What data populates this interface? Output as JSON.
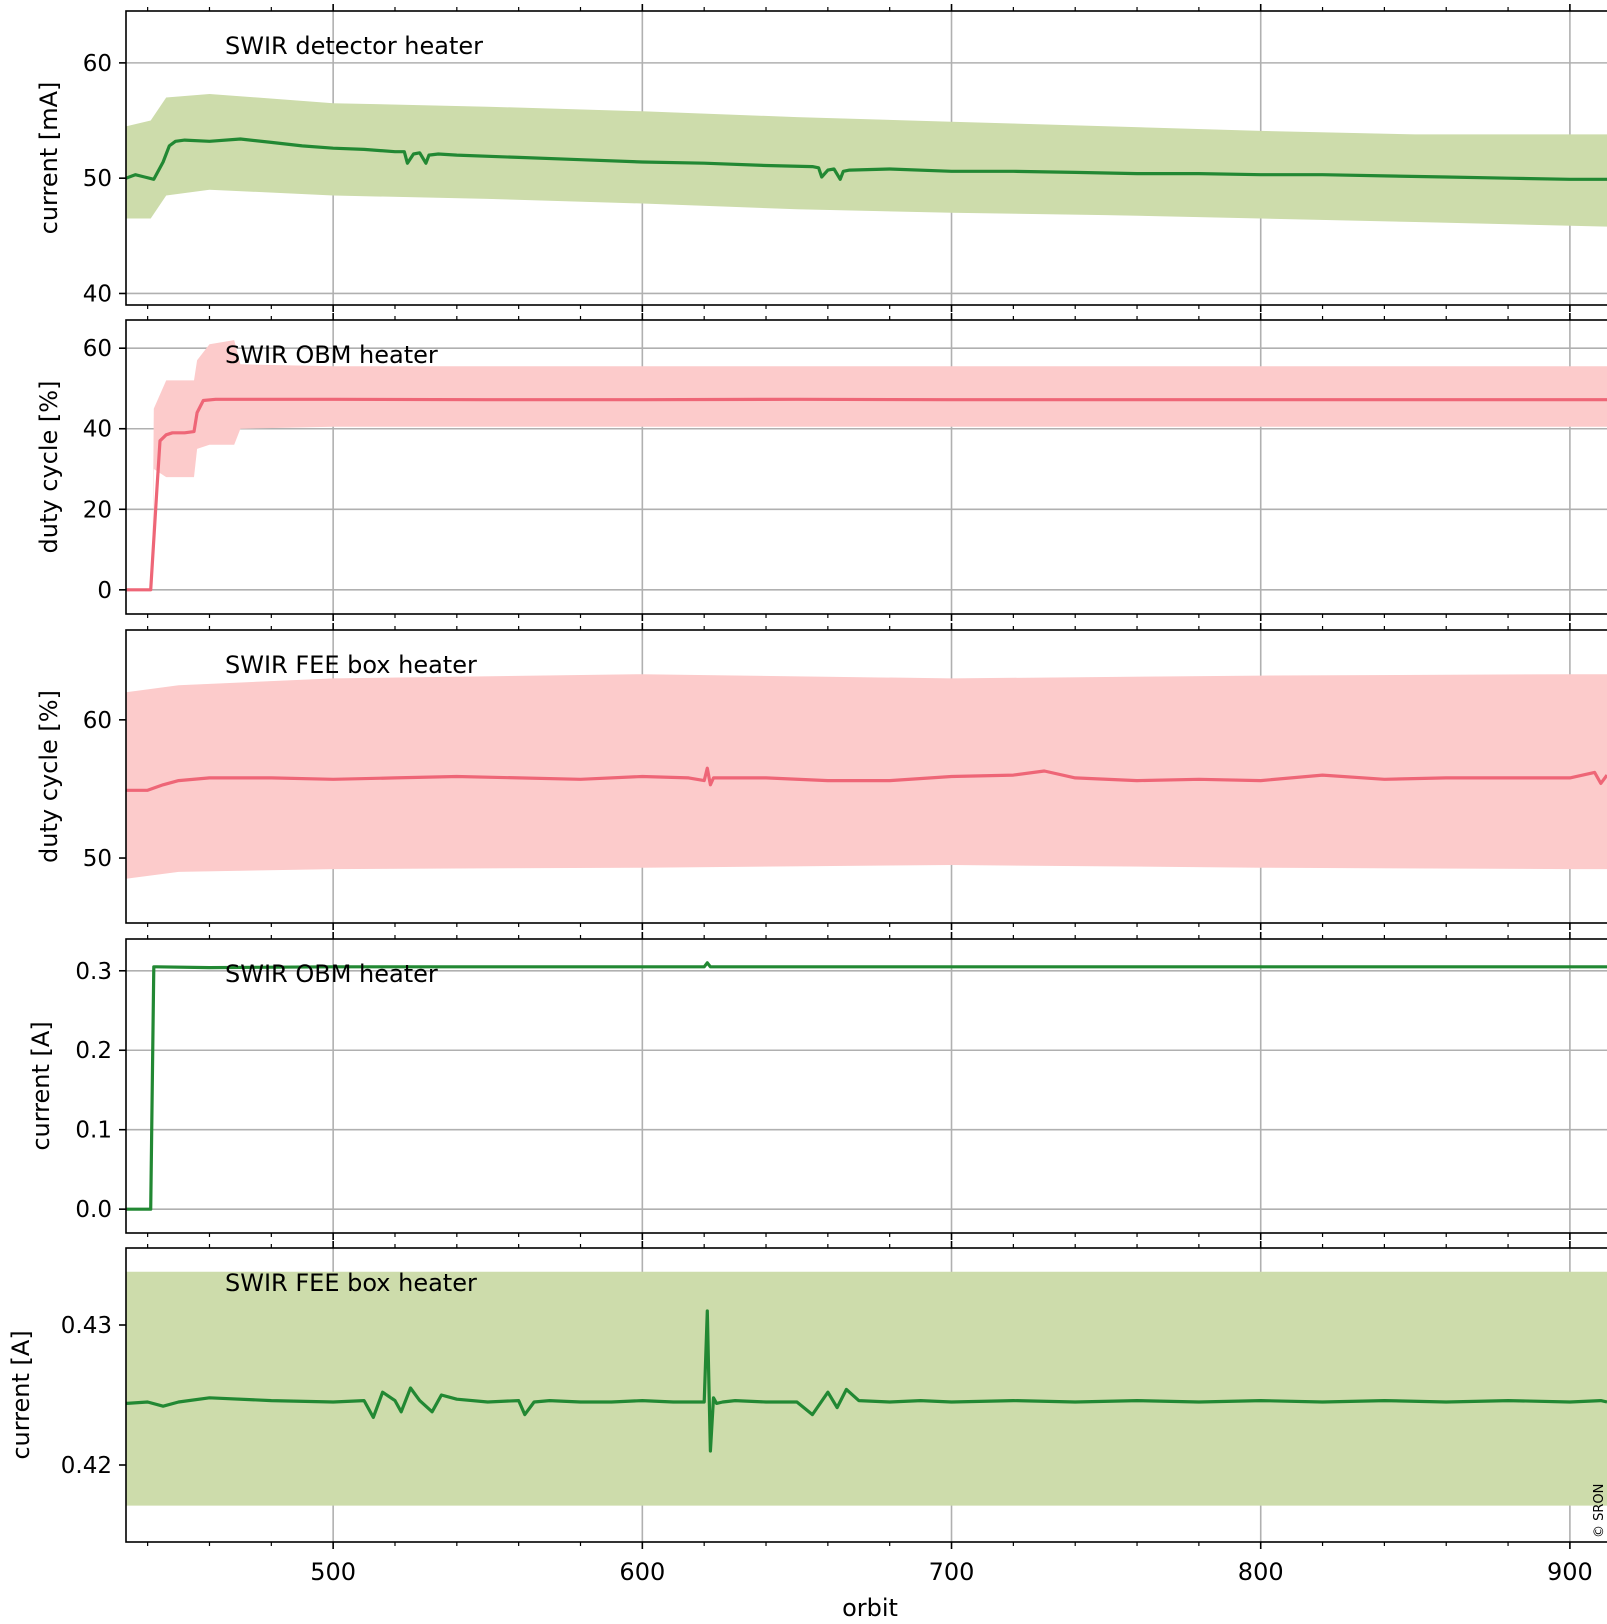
{
  "figure": {
    "xlabel": "orbit",
    "x_ticks": [
      500,
      600,
      700,
      800,
      900
    ],
    "x_range": [
      433,
      912
    ],
    "watermark": "© SRON"
  },
  "colors": {
    "band_green": "#cddcab",
    "line_green": "#228833",
    "band_red": "#fccbcb",
    "line_red": "#ee6677",
    "grid": "#b0b0b0"
  },
  "chart_data": [
    {
      "type": "area",
      "label": "SWIR detector heater",
      "ylabel": "current [mA]",
      "ylim": [
        39,
        64.5
      ],
      "yticks": [
        40,
        50,
        60
      ],
      "grid": true,
      "series": [
        {
          "role": "band",
          "x": [
            433,
            441,
            446,
            460,
            500,
            550,
            600,
            650,
            700,
            750,
            800,
            850,
            912
          ],
          "upper": [
            54.5,
            55,
            57,
            57.3,
            56.5,
            56.2,
            55.8,
            55.3,
            54.9,
            54.5,
            54.1,
            53.8,
            53.8
          ],
          "lower": [
            46.5,
            46.5,
            48.5,
            49,
            48.5,
            48.2,
            47.8,
            47.3,
            47,
            46.8,
            46.5,
            46.2,
            45.8
          ]
        },
        {
          "role": "mean",
          "x": [
            433,
            436,
            439,
            442,
            445,
            447,
            449,
            452,
            460,
            470,
            480,
            490,
            500,
            510,
            520,
            523,
            524,
            526,
            528,
            530,
            531,
            534,
            540,
            560,
            580,
            600,
            620,
            640,
            655,
            657,
            658,
            660,
            662,
            664,
            665,
            667,
            680,
            700,
            720,
            740,
            760,
            780,
            800,
            820,
            840,
            860,
            880,
            900,
            912
          ],
          "values": [
            50.0,
            50.3,
            50.1,
            49.9,
            51.4,
            52.8,
            53.2,
            53.3,
            53.2,
            53.4,
            53.1,
            52.8,
            52.6,
            52.5,
            52.3,
            52.3,
            51.3,
            52.1,
            52.2,
            51.3,
            52.0,
            52.1,
            52.0,
            51.8,
            51.6,
            51.4,
            51.3,
            51.1,
            51.0,
            50.9,
            50.1,
            50.7,
            50.8,
            49.9,
            50.6,
            50.7,
            50.8,
            50.6,
            50.6,
            50.5,
            50.4,
            50.4,
            50.3,
            50.3,
            50.2,
            50.1,
            50.0,
            49.9,
            49.9
          ]
        }
      ]
    },
    {
      "type": "area",
      "label": "SWIR OBM heater",
      "ylabel": "duty cycle [%]",
      "ylim": [
        -6,
        67
      ],
      "yticks": [
        0,
        20,
        40,
        60
      ],
      "grid": true,
      "series": [
        {
          "role": "band",
          "x": [
            441.5,
            442,
            446,
            455,
            456,
            460,
            468,
            470,
            500,
            600,
            700,
            800,
            912
          ],
          "upper": [
            0,
            45,
            52,
            52,
            57,
            61,
            62,
            56,
            55.5,
            55.5,
            55.5,
            55.5,
            55.5
          ],
          "lower": [
            0,
            30,
            28,
            28,
            35,
            36,
            36,
            40,
            40.5,
            40.5,
            40.5,
            40.5,
            40.5
          ]
        },
        {
          "role": "mean",
          "x": [
            433,
            441,
            443,
            444,
            446,
            448,
            452,
            455,
            456,
            458,
            462,
            500,
            550,
            600,
            650,
            700,
            750,
            800,
            850,
            912
          ],
          "values": [
            0,
            0,
            25,
            37,
            38.5,
            39,
            39,
            39.3,
            44,
            47,
            47.3,
            47.3,
            47.2,
            47.2,
            47.3,
            47.2,
            47.2,
            47.2,
            47.2,
            47.2
          ]
        }
      ]
    },
    {
      "type": "area",
      "label": "SWIR FEE box heater",
      "ylabel": "duty cycle [%]",
      "ylim": [
        45.3,
        66.5
      ],
      "yticks": [
        50,
        60
      ],
      "grid": true,
      "series": [
        {
          "role": "band",
          "x": [
            433,
            450,
            500,
            600,
            700,
            800,
            900,
            912
          ],
          "upper": [
            62.0,
            62.5,
            63.0,
            63.3,
            63.0,
            63.2,
            63.3,
            63.3
          ],
          "lower": [
            48.5,
            49.0,
            49.2,
            49.3,
            49.5,
            49.3,
            49.2,
            49.2
          ]
        },
        {
          "role": "mean",
          "x": [
            433,
            440,
            445,
            450,
            460,
            480,
            500,
            520,
            540,
            560,
            580,
            600,
            615,
            620,
            621,
            622,
            623,
            640,
            660,
            680,
            700,
            720,
            730,
            740,
            760,
            780,
            800,
            820,
            840,
            860,
            880,
            900,
            908,
            910,
            912
          ],
          "values": [
            54.9,
            54.9,
            55.3,
            55.6,
            55.8,
            55.8,
            55.7,
            55.8,
            55.9,
            55.8,
            55.7,
            55.9,
            55.8,
            55.6,
            56.5,
            55.3,
            55.8,
            55.8,
            55.6,
            55.6,
            55.9,
            56.0,
            56.3,
            55.8,
            55.6,
            55.7,
            55.6,
            56.0,
            55.7,
            55.8,
            55.8,
            55.8,
            56.2,
            55.4,
            56.0
          ]
        }
      ]
    },
    {
      "type": "line",
      "label": "SWIR OBM heater",
      "ylabel": "current [A]",
      "ylim": [
        -0.03,
        0.34
      ],
      "yticks": [
        0.0,
        0.1,
        0.2,
        0.3
      ],
      "ytick_labels": [
        "0.0",
        "0.1",
        "0.2",
        "0.3"
      ],
      "grid": true,
      "series": [
        {
          "role": "mean",
          "x": [
            433,
            441,
            442,
            443,
            460,
            500,
            600,
            620,
            621,
            622,
            700,
            800,
            912
          ],
          "values": [
            0,
            0,
            0.305,
            0.305,
            0.304,
            0.305,
            0.305,
            0.305,
            0.31,
            0.305,
            0.305,
            0.305,
            0.305
          ]
        }
      ]
    },
    {
      "type": "area",
      "label": "SWIR FEE box heater",
      "ylabel": "current [A]",
      "ylim": [
        0.4145,
        0.4355
      ],
      "yticks": [
        0.42,
        0.43
      ],
      "ytick_labels": [
        "0.42",
        "0.43"
      ],
      "grid": true,
      "series": [
        {
          "role": "band",
          "x": [
            433,
            912
          ],
          "upper": [
            0.4338,
            0.4338
          ],
          "lower": [
            0.4171,
            0.4171
          ]
        },
        {
          "role": "mean",
          "x": [
            433,
            440,
            445,
            450,
            460,
            480,
            500,
            510,
            513,
            516,
            520,
            522,
            525,
            528,
            532,
            535,
            540,
            550,
            560,
            562,
            565,
            570,
            580,
            590,
            600,
            610,
            615,
            619,
            620,
            621,
            622,
            623,
            624,
            626,
            630,
            640,
            650,
            655,
            660,
            663,
            666,
            670,
            680,
            690,
            700,
            720,
            740,
            760,
            780,
            800,
            820,
            840,
            860,
            880,
            900,
            910,
            912
          ],
          "values": [
            0.4244,
            0.4245,
            0.4242,
            0.4245,
            0.4248,
            0.4246,
            0.4245,
            0.4246,
            0.4234,
            0.4252,
            0.4246,
            0.4238,
            0.4255,
            0.4246,
            0.4238,
            0.425,
            0.4247,
            0.4245,
            0.4246,
            0.4236,
            0.4245,
            0.4246,
            0.4245,
            0.4245,
            0.4246,
            0.4245,
            0.4245,
            0.4245,
            0.4245,
            0.431,
            0.421,
            0.4248,
            0.4244,
            0.4245,
            0.4246,
            0.4245,
            0.4245,
            0.4236,
            0.4252,
            0.4241,
            0.4254,
            0.4246,
            0.4245,
            0.4246,
            0.4245,
            0.4246,
            0.4245,
            0.4246,
            0.4245,
            0.4246,
            0.4245,
            0.4246,
            0.4245,
            0.4246,
            0.4245,
            0.4246,
            0.4245
          ]
        }
      ]
    }
  ]
}
